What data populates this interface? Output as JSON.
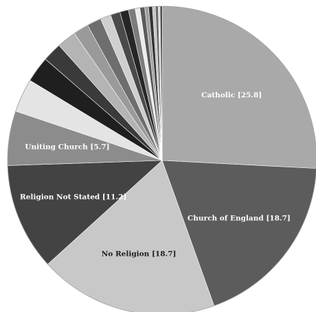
{
  "chart_data": {
    "type": "pie",
    "title": "",
    "slices": [
      {
        "label": "Catholic [25.8]",
        "value": 25.8,
        "color": "#a9a9a9",
        "label_style": "light"
      },
      {
        "label": "Church of England [18.7]",
        "value": 18.7,
        "color": "#5c5c5c",
        "label_style": "light"
      },
      {
        "label": "No Religion [18.7]",
        "value": 18.7,
        "color": "#c8c8c8",
        "label_style": "dark"
      },
      {
        "label": "Religion Not Stated [11.2]",
        "value": 11.2,
        "color": "#434343",
        "label_style": "light"
      },
      {
        "label": "Uniting Church [5.7]",
        "value": 5.7,
        "color": "#8c8c8c",
        "label_style": "light"
      },
      {
        "label": "",
        "value": 3.5,
        "color": "#e4e4e4"
      },
      {
        "label": "",
        "value": 2.7,
        "color": "#1f1f1f"
      },
      {
        "label": "",
        "value": 2.0,
        "color": "#3a3a3a"
      },
      {
        "label": "",
        "value": 2.0,
        "color": "#b4b4b4"
      },
      {
        "label": "",
        "value": 1.6,
        "color": "#9a9a9a"
      },
      {
        "label": "",
        "value": 1.5,
        "color": "#6e6e6e"
      },
      {
        "label": "",
        "value": 1.1,
        "color": "#cfcfcf"
      },
      {
        "label": "",
        "value": 1.0,
        "color": "#4a4a4a"
      },
      {
        "label": "",
        "value": 0.9,
        "color": "#262626"
      },
      {
        "label": "",
        "value": 0.7,
        "color": "#7c7c7c"
      },
      {
        "label": "",
        "value": 0.5,
        "color": "#ececec"
      },
      {
        "label": "",
        "value": 0.5,
        "color": "#5a5a5a"
      },
      {
        "label": "",
        "value": 0.4,
        "color": "#a0a0a0"
      },
      {
        "label": "",
        "value": 0.4,
        "color": "#333333"
      },
      {
        "label": "",
        "value": 0.3,
        "color": "#c4c4c4"
      },
      {
        "label": "",
        "value": 0.3,
        "color": "#6a6a6a"
      },
      {
        "label": "",
        "value": 0.2,
        "color": "#d8d8d8"
      },
      {
        "label": "",
        "value": 0.2,
        "color": "#2c2c2c"
      }
    ]
  }
}
